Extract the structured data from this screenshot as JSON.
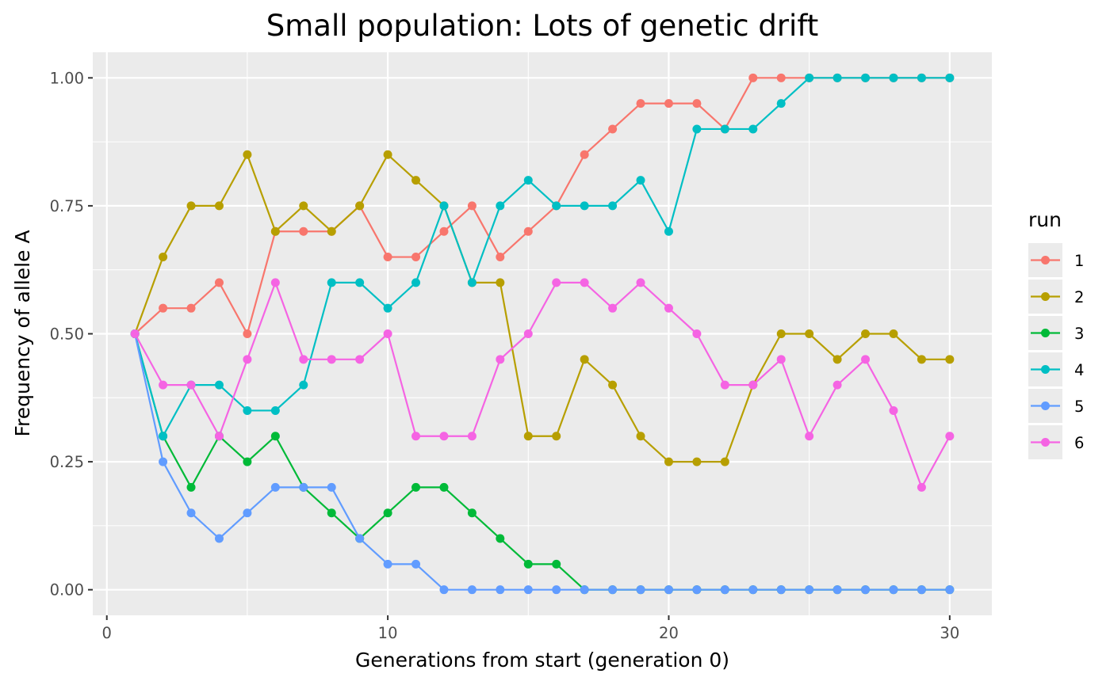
{
  "chart_data": {
    "type": "line",
    "title": "Small population: Lots of genetic drift",
    "xlabel": "Generations from start (generation 0)",
    "ylabel": "Frequency of allele A",
    "xlim": [
      -0.5,
      31.5
    ],
    "ylim": [
      -0.05,
      1.05
    ],
    "x_ticks": [
      0,
      10,
      20,
      30
    ],
    "x_tick_labels": [
      "0",
      "10",
      "20",
      "30"
    ],
    "y_ticks": [
      0,
      0.25,
      0.5,
      0.75,
      1.0
    ],
    "y_tick_labels": [
      "0.00",
      "0.25",
      "0.50",
      "0.75",
      "1.00"
    ],
    "grid": true,
    "legend": {
      "title": "run",
      "position": "right"
    },
    "x": [
      1,
      2,
      3,
      4,
      5,
      6,
      7,
      8,
      9,
      10,
      11,
      12,
      13,
      14,
      15,
      16,
      17,
      18,
      19,
      20,
      21,
      22,
      23,
      24,
      25,
      26,
      27,
      28,
      29,
      30
    ],
    "series": [
      {
        "name": "1",
        "color": "#F8766D",
        "values": [
          0.5,
          0.55,
          0.55,
          0.6,
          0.5,
          0.7,
          0.7,
          0.7,
          0.75,
          0.65,
          0.65,
          0.7,
          0.75,
          0.65,
          0.7,
          0.75,
          0.85,
          0.9,
          0.95,
          0.95,
          0.95,
          0.9,
          1.0,
          1.0,
          1.0,
          1.0,
          1.0,
          1.0,
          1.0,
          1.0
        ]
      },
      {
        "name": "2",
        "color": "#B79F00",
        "values": [
          0.5,
          0.65,
          0.75,
          0.75,
          0.85,
          0.7,
          0.75,
          0.7,
          0.75,
          0.85,
          0.8,
          0.75,
          0.6,
          0.6,
          0.3,
          0.3,
          0.45,
          0.4,
          0.3,
          0.25,
          0.25,
          0.25,
          0.4,
          0.5,
          0.5,
          0.45,
          0.5,
          0.5,
          0.45,
          0.45
        ]
      },
      {
        "name": "3",
        "color": "#00BA38",
        "values": [
          0.5,
          0.3,
          0.2,
          0.3,
          0.25,
          0.3,
          0.2,
          0.15,
          0.1,
          0.15,
          0.2,
          0.2,
          0.15,
          0.1,
          0.05,
          0.05,
          0.0,
          0.0,
          0.0,
          0.0,
          0.0,
          0.0,
          0.0,
          0.0,
          0.0,
          0.0,
          0.0,
          0.0,
          0.0,
          0.0
        ]
      },
      {
        "name": "4",
        "color": "#00BFC4",
        "values": [
          0.5,
          0.3,
          0.4,
          0.4,
          0.35,
          0.35,
          0.4,
          0.6,
          0.6,
          0.55,
          0.6,
          0.75,
          0.6,
          0.75,
          0.8,
          0.75,
          0.75,
          0.75,
          0.8,
          0.7,
          0.9,
          0.9,
          0.9,
          0.95,
          1.0,
          1.0,
          1.0,
          1.0,
          1.0,
          1.0
        ]
      },
      {
        "name": "5",
        "color": "#619CFF",
        "values": [
          0.5,
          0.25,
          0.15,
          0.1,
          0.15,
          0.2,
          0.2,
          0.2,
          0.1,
          0.05,
          0.05,
          0.0,
          0.0,
          0.0,
          0.0,
          0.0,
          0.0,
          0.0,
          0.0,
          0.0,
          0.0,
          0.0,
          0.0,
          0.0,
          0.0,
          0.0,
          0.0,
          0.0,
          0.0,
          0.0
        ]
      },
      {
        "name": "6",
        "color": "#F564E3",
        "values": [
          0.5,
          0.4,
          0.4,
          0.3,
          0.45,
          0.6,
          0.45,
          0.45,
          0.45,
          0.5,
          0.3,
          0.3,
          0.3,
          0.45,
          0.5,
          0.6,
          0.6,
          0.55,
          0.6,
          0.55,
          0.5,
          0.4,
          0.4,
          0.45,
          0.3,
          0.4,
          0.45,
          0.35,
          0.2,
          0.3
        ]
      }
    ]
  }
}
